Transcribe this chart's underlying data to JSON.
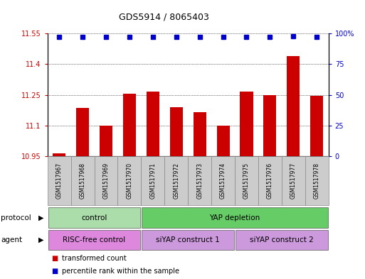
{
  "title": "GDS5914 / 8065403",
  "samples": [
    "GSM1517967",
    "GSM1517968",
    "GSM1517969",
    "GSM1517970",
    "GSM1517971",
    "GSM1517972",
    "GSM1517973",
    "GSM1517974",
    "GSM1517975",
    "GSM1517976",
    "GSM1517977",
    "GSM1517978"
  ],
  "bar_values": [
    10.965,
    11.185,
    11.1,
    11.255,
    11.265,
    11.19,
    11.165,
    11.1,
    11.265,
    11.25,
    11.44,
    11.245
  ],
  "percentile_values": [
    97,
    97,
    97,
    97,
    97,
    97,
    97,
    97,
    97,
    97,
    98,
    97
  ],
  "bar_color": "#cc0000",
  "percentile_color": "#0000cc",
  "ylim_left": [
    10.95,
    11.55
  ],
  "ylim_right": [
    0,
    100
  ],
  "yticks_left": [
    10.95,
    11.1,
    11.25,
    11.4,
    11.55
  ],
  "yticks_right": [
    0,
    25,
    50,
    75,
    100
  ],
  "ytick_labels_left": [
    "10.95",
    "11.1",
    "11.25",
    "11.4",
    "11.55"
  ],
  "ytick_labels_right": [
    "0",
    "25",
    "50",
    "75",
    "100%"
  ],
  "protocol_labels": [
    [
      "control",
      4
    ],
    [
      "YAP depletion",
      8
    ]
  ],
  "agent_labels": [
    [
      "RISC-free control",
      4
    ],
    [
      "siYAP construct 1",
      4
    ],
    [
      "siYAP construct 2",
      4
    ]
  ],
  "protocol_color_control": "#aaddaa",
  "protocol_color_yap": "#66cc66",
  "agent_color_risc": "#dd88dd",
  "agent_color_siyap1": "#cc99dd",
  "agent_color_siyap2": "#cc99dd",
  "sample_box_color": "#cccccc",
  "legend_items": [
    {
      "label": "transformed count",
      "color": "#cc0000"
    },
    {
      "label": "percentile rank within the sample",
      "color": "#0000cc"
    }
  ]
}
